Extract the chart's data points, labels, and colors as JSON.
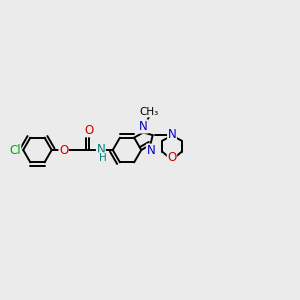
{
  "background_color": "#ebebeb",
  "atom_colors": {
    "C": "#000000",
    "N": "#0000cc",
    "O": "#cc0000",
    "Cl": "#00aa00",
    "H": "#008080",
    "NH": "#008080"
  },
  "bond_color": "#000000",
  "bond_width": 1.4,
  "dbo": 0.07
}
